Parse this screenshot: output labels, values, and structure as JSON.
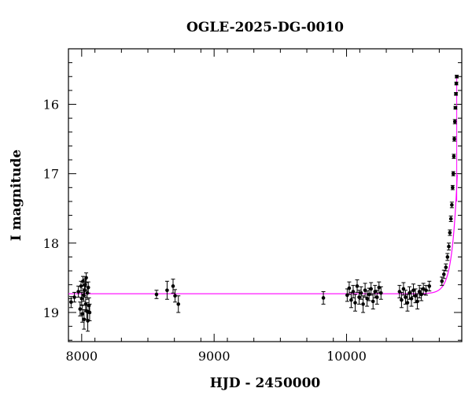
{
  "chart_data": {
    "type": "scatter",
    "title": "OGLE-2025-DG-0010",
    "xlabel": "HJD - 2450000",
    "ylabel": "I magnitude",
    "xlim": [
      7900,
      10870
    ],
    "ylim": [
      19.42,
      15.2
    ],
    "y_inverted": true,
    "x_ticks": [
      8000,
      9000,
      10000
    ],
    "x_tick_labels": [
      "8000",
      "9000",
      "10000"
    ],
    "y_ticks": [
      16,
      17,
      18,
      19
    ],
    "y_tick_labels": [
      "16",
      "17",
      "18",
      "19"
    ],
    "grid": false,
    "colors": {
      "points": "#000000",
      "model": "#ff00ff"
    },
    "series": [
      {
        "type": "scatter_with_errorbars",
        "points": [
          [
            7920,
            18.85,
            0.08
          ],
          [
            7945,
            18.78,
            0.07
          ],
          [
            7975,
            18.7,
            0.08
          ],
          [
            7988,
            18.95,
            0.1
          ],
          [
            7995,
            18.62,
            0.07
          ],
          [
            8000,
            18.8,
            0.09
          ],
          [
            8005,
            19.02,
            0.12
          ],
          [
            8010,
            18.55,
            0.07
          ],
          [
            8015,
            18.75,
            0.09
          ],
          [
            8018,
            19.1,
            0.14
          ],
          [
            8022,
            18.68,
            0.08
          ],
          [
            8027,
            18.6,
            0.08
          ],
          [
            8030,
            18.88,
            0.1
          ],
          [
            8034,
            18.5,
            0.07
          ],
          [
            8038,
            18.98,
            0.12
          ],
          [
            8042,
            18.72,
            0.09
          ],
          [
            8046,
            19.12,
            0.15
          ],
          [
            8050,
            18.64,
            0.08
          ],
          [
            8055,
            18.9,
            0.11
          ],
          [
            8060,
            19.0,
            0.12
          ],
          [
            8565,
            18.74,
            0.06
          ],
          [
            8645,
            18.68,
            0.13
          ],
          [
            8690,
            18.62,
            0.1
          ],
          [
            8705,
            18.76,
            0.09
          ],
          [
            8730,
            18.88,
            0.12
          ],
          [
            9825,
            18.79,
            0.09
          ],
          [
            10005,
            18.75,
            0.09
          ],
          [
            10020,
            18.65,
            0.09
          ],
          [
            10035,
            18.82,
            0.11
          ],
          [
            10050,
            18.7,
            0.09
          ],
          [
            10065,
            18.86,
            0.12
          ],
          [
            10080,
            18.62,
            0.09
          ],
          [
            10095,
            18.78,
            0.1
          ],
          [
            10110,
            18.72,
            0.09
          ],
          [
            10125,
            18.88,
            0.12
          ],
          [
            10140,
            18.68,
            0.1
          ],
          [
            10155,
            18.8,
            0.11
          ],
          [
            10170,
            18.74,
            0.09
          ],
          [
            10185,
            18.66,
            0.09
          ],
          [
            10200,
            18.84,
            0.11
          ],
          [
            10215,
            18.7,
            0.09
          ],
          [
            10230,
            18.78,
            0.1
          ],
          [
            10245,
            18.64,
            0.08
          ],
          [
            10260,
            18.72,
            0.09
          ],
          [
            10400,
            18.7,
            0.09
          ],
          [
            10415,
            18.82,
            0.11
          ],
          [
            10430,
            18.66,
            0.09
          ],
          [
            10445,
            18.78,
            0.1
          ],
          [
            10460,
            18.86,
            0.12
          ],
          [
            10475,
            18.72,
            0.09
          ],
          [
            10490,
            18.8,
            0.11
          ],
          [
            10505,
            18.68,
            0.09
          ],
          [
            10520,
            18.76,
            0.1
          ],
          [
            10535,
            18.84,
            0.11
          ],
          [
            10550,
            18.7,
            0.09
          ],
          [
            10565,
            18.74,
            0.09
          ],
          [
            10580,
            18.66,
            0.08
          ],
          [
            10600,
            18.68,
            0.07
          ],
          [
            10625,
            18.62,
            0.07
          ],
          [
            10720,
            18.55,
            0.06
          ],
          [
            10735,
            18.45,
            0.06
          ],
          [
            10750,
            18.35,
            0.05
          ],
          [
            10762,
            18.2,
            0.05
          ],
          [
            10772,
            18.05,
            0.05
          ],
          [
            10780,
            17.85,
            0.04
          ],
          [
            10788,
            17.65,
            0.04
          ],
          [
            10795,
            17.45,
            0.04
          ],
          [
            10801,
            17.2,
            0.03
          ],
          [
            10806,
            17.0,
            0.03
          ],
          [
            10810,
            16.75,
            0.03
          ],
          [
            10814,
            16.5,
            0.03
          ],
          [
            10818,
            16.25,
            0.03
          ],
          [
            10822,
            16.05,
            0.02
          ],
          [
            10826,
            15.85,
            0.02
          ],
          [
            10829,
            15.7,
            0.02
          ],
          [
            10832,
            15.6,
            0.02
          ]
        ]
      },
      {
        "type": "model_line",
        "baseline": 18.73,
        "peak_time": 10920,
        "timescale": 40,
        "x_range": [
          7900,
          10836
        ]
      }
    ]
  }
}
